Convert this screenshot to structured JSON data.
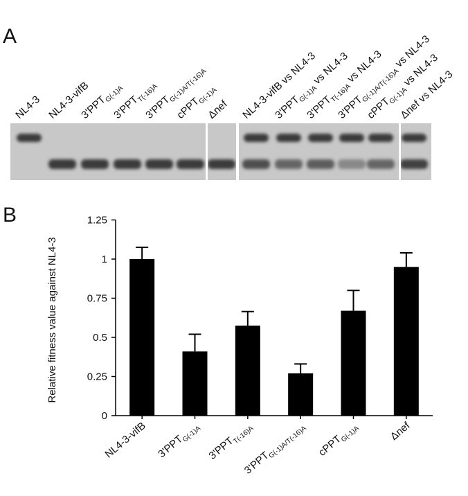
{
  "panel_labels": [
    "A",
    "B"
  ],
  "gel": {
    "lanes": [
      [
        "NL4-3"
      ],
      [
        "NL4-3-vifB"
      ],
      [
        "3'PPT",
        "G(-1)A"
      ],
      [
        "3'PPT",
        "T(-16)A"
      ],
      [
        "3'PPT",
        "G(-1)A/T(-16)A"
      ],
      [
        "cPPT",
        "G(-1)A"
      ],
      [
        "Δnef"
      ],
      [
        "NL4-3-vifB vs NL4-3"
      ],
      [
        "3'PPT",
        "G(-1)A",
        " vs NL4-3"
      ],
      [
        "3'PPT",
        "T(-16)A",
        " vs NL4-3"
      ],
      [
        "3'PPT",
        "G(-1)A/T(-16)A",
        " vs NL4-3"
      ],
      [
        "cPPT",
        "G(-1)A",
        " vs NL4-3"
      ],
      [
        "Δnef vs NL4-3"
      ]
    ]
  },
  "chart_data": {
    "type": "bar",
    "y_label": "Relative fitness value against NL4-3",
    "categories": [
      [
        "NL4-3-vifB"
      ],
      [
        "3'PPT",
        "G(-1)A"
      ],
      [
        "3'PPT",
        "T(-16)A"
      ],
      [
        "3'PPT",
        "G(-1)A/T(-16)A"
      ],
      [
        "cPPT",
        "G(-1)A"
      ],
      [
        "Δnef"
      ]
    ],
    "values": [
      1.0,
      0.41,
      0.575,
      0.27,
      0.67,
      0.95
    ],
    "errors": [
      0.075,
      0.11,
      0.09,
      0.06,
      0.13,
      0.09
    ],
    "color": "#000000",
    "ylim": [
      0,
      1.25
    ],
    "yticks": [
      0,
      0.25,
      0.5,
      0.75,
      1,
      1.25
    ]
  }
}
